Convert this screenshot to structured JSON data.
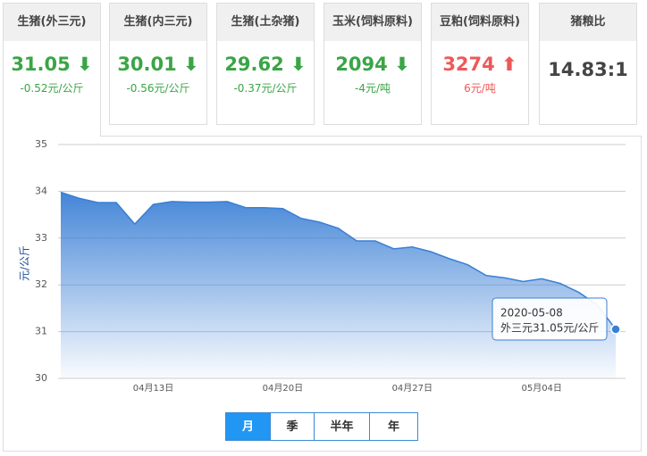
{
  "cards": [
    {
      "title": "生猪(外三元)",
      "price": "31.05",
      "change": "-0.52元/公斤"
    },
    {
      "title": "生猪(内三元)",
      "price": "30.01",
      "change": "-0.56元/公斤"
    },
    {
      "title": "生猪(土杂猪)",
      "price": "29.62",
      "change": "-0.37元/公斤"
    },
    {
      "title": "玉米(饲料原料)",
      "price": "2094",
      "change": "-4元/吨"
    },
    {
      "title": "豆粕(饲料原料)",
      "price": "3274",
      "change": "6元/吨"
    },
    {
      "title": "猪粮比",
      "price": "14.83:1"
    }
  ],
  "chart_data": {
    "type": "area",
    "y_label": "元/公斤",
    "categories": [
      null,
      null,
      null,
      null,
      null,
      "04月13日",
      null,
      null,
      null,
      null,
      null,
      null,
      "04月20日",
      null,
      null,
      null,
      null,
      null,
      null,
      "04月27日",
      null,
      null,
      null,
      null,
      null,
      null,
      "05月04日",
      null,
      null,
      null,
      null
    ],
    "values": [
      33.98,
      33.85,
      33.76,
      33.76,
      33.3,
      33.72,
      33.78,
      33.77,
      33.77,
      33.78,
      33.65,
      33.65,
      33.63,
      33.42,
      33.34,
      33.21,
      32.94,
      32.94,
      32.77,
      32.81,
      32.71,
      32.56,
      32.43,
      32.2,
      32.15,
      32.07,
      32.13,
      32.03,
      31.84,
      31.57,
      31.05
    ],
    "color": "#3a7fd5",
    "ylim": [
      30,
      35
    ],
    "yticks": [
      30,
      31,
      32,
      33,
      34,
      35
    ],
    "grid": true,
    "tooltip": {
      "date": "2020-05-08",
      "text": "外三元31.05元/公斤"
    }
  },
  "range_buttons": [
    "月",
    "季",
    "半年",
    "年"
  ]
}
